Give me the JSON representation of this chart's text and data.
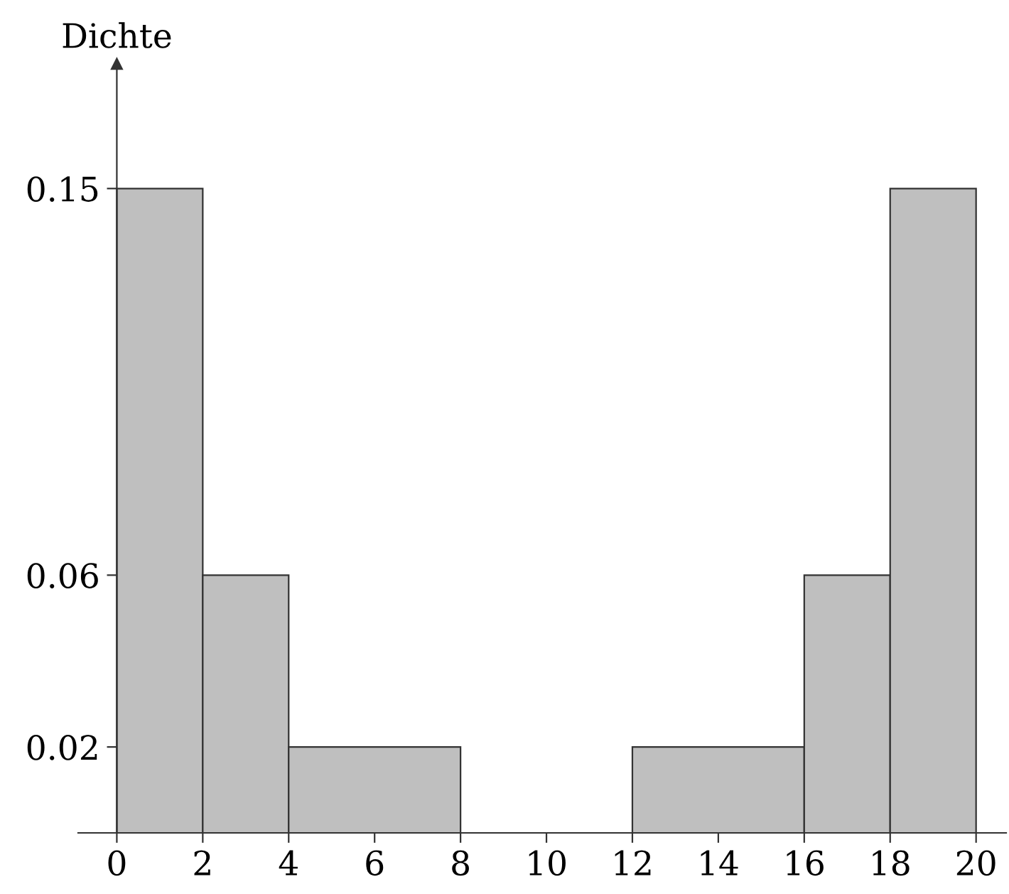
{
  "chart_data": {
    "type": "histogram",
    "ylabel": "Dichte",
    "bins": [
      0,
      2,
      4,
      8,
      12,
      16,
      18,
      20
    ],
    "values": [
      0.15,
      0.06,
      0.02,
      0,
      0.02,
      0.06,
      0.15
    ],
    "color": "#bfbfbf",
    "xlim": [
      -0.9,
      20.7
    ],
    "ylim": [
      0,
      0.179
    ],
    "xticks": [
      0,
      2,
      4,
      6,
      8,
      10,
      12,
      14,
      16,
      18,
      20
    ],
    "yticks": [
      0.02,
      0.06,
      0.15
    ],
    "grid": false
  }
}
